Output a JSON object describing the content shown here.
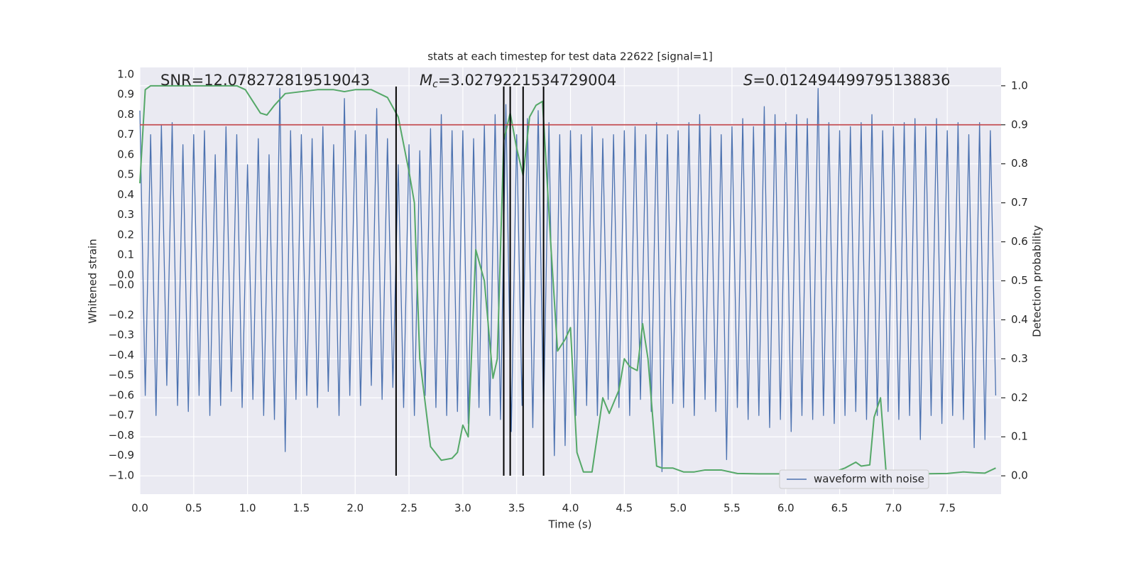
{
  "chart_data": {
    "type": "line",
    "title": "stats at each timestep for test data 22622 [signal=1]",
    "xlabel": "Time (s)",
    "ylabel": "Whitened strain",
    "y2label": "Detection probability",
    "xlim": [
      0,
      8
    ],
    "ylim": [
      -1.092,
      1.035
    ],
    "y2lim": [
      -0.047,
      1.047
    ],
    "xticks": [
      {
        "value": 0,
        "label": "0.0"
      },
      {
        "value": 0.5,
        "label": "0.5"
      },
      {
        "value": 1,
        "label": "1.0"
      },
      {
        "value": 1.5,
        "label": "1.5"
      },
      {
        "value": 2,
        "label": "2.0"
      },
      {
        "value": 2.5,
        "label": "2.5"
      },
      {
        "value": 3,
        "label": "3.0"
      },
      {
        "value": 3.5,
        "label": "3.5"
      },
      {
        "value": 4,
        "label": "4.0"
      },
      {
        "value": 4.5,
        "label": "4.5"
      },
      {
        "value": 5,
        "label": "5.0"
      },
      {
        "value": 5.5,
        "label": "5.5"
      },
      {
        "value": 6,
        "label": "6.0"
      },
      {
        "value": 6.5,
        "label": "6.5"
      },
      {
        "value": 7,
        "label": "7.0"
      },
      {
        "value": 7.5,
        "label": "7.5"
      }
    ],
    "yticks": [
      {
        "value": 1,
        "label": "1.0"
      },
      {
        "value": 0.9,
        "label": "0.9"
      },
      {
        "value": 0.8,
        "label": "0.8"
      },
      {
        "value": 0.7,
        "label": "0.7"
      },
      {
        "value": 0.6,
        "label": "0.6"
      },
      {
        "value": 0.5,
        "label": "0.5"
      },
      {
        "value": 0.4,
        "label": "0.4"
      },
      {
        "value": 0.3,
        "label": "0.3"
      },
      {
        "value": 0.2,
        "label": "0.2"
      },
      {
        "value": 0.1,
        "label": "0.1"
      },
      {
        "value": 0,
        "label": "0.0"
      },
      {
        "value": -0.05,
        "label": "−0.0"
      },
      {
        "value": -0.2,
        "label": "−0.2"
      },
      {
        "value": -0.3,
        "label": "−0.3"
      },
      {
        "value": -0.4,
        "label": "−0.4"
      },
      {
        "value": -0.5,
        "label": "−0.5"
      },
      {
        "value": -0.6,
        "label": "−0.6"
      },
      {
        "value": -0.7,
        "label": "−0.7"
      },
      {
        "value": -0.8,
        "label": "−0.8"
      },
      {
        "value": -0.9,
        "label": "−0.9"
      },
      {
        "value": -1,
        "label": "−1.0"
      }
    ],
    "y2ticks": [
      {
        "value": 0,
        "label": "0.0"
      },
      {
        "value": 0.1,
        "label": "0.1"
      },
      {
        "value": 0.2,
        "label": "0.2"
      },
      {
        "value": 0.3,
        "label": "0.3"
      },
      {
        "value": 0.4,
        "label": "0.4"
      },
      {
        "value": 0.5,
        "label": "0.5"
      },
      {
        "value": 0.6,
        "label": "0.6"
      },
      {
        "value": 0.7,
        "label": "0.7"
      },
      {
        "value": 0.8,
        "label": "0.8"
      },
      {
        "value": 0.9,
        "label": "0.9"
      },
      {
        "value": 1,
        "label": "1.0"
      }
    ],
    "grid": true,
    "legend": "lower right",
    "series": [
      {
        "name": "waveform with noise",
        "color": "#4c72b0",
        "x": [
          0,
          0.05,
          0.1,
          0.15,
          0.2,
          0.25,
          0.3,
          0.35,
          0.4,
          0.45,
          0.5,
          0.55,
          0.6,
          0.65,
          0.7,
          0.75,
          0.8,
          0.85,
          0.9,
          0.95,
          1,
          1.05,
          1.1,
          1.15,
          1.2,
          1.25,
          1.3,
          1.35,
          1.4,
          1.45,
          1.5,
          1.55,
          1.6,
          1.65,
          1.7,
          1.75,
          1.8,
          1.85,
          1.9,
          1.95,
          2,
          2.05,
          2.1,
          2.15,
          2.2,
          2.25,
          2.3,
          2.35,
          2.4,
          2.45,
          2.5,
          2.55,
          2.6,
          2.65,
          2.7,
          2.75,
          2.8,
          2.85,
          2.9,
          2.95,
          3,
          3.05,
          3.1,
          3.15,
          3.2,
          3.25,
          3.3,
          3.35,
          3.4,
          3.45,
          3.5,
          3.55,
          3.6,
          3.65,
          3.7,
          3.75,
          3.8,
          3.85,
          3.9,
          3.95,
          4,
          4.05,
          4.1,
          4.15,
          4.2,
          4.25,
          4.3,
          4.35,
          4.4,
          4.45,
          4.5,
          4.55,
          4.6,
          4.65,
          4.7,
          4.75,
          4.8,
          4.85,
          4.9,
          4.95,
          5,
          5.05,
          5.1,
          5.15,
          5.2,
          5.25,
          5.3,
          5.35,
          5.4,
          5.45,
          5.5,
          5.55,
          5.6,
          5.65,
          5.7,
          5.75,
          5.8,
          5.85,
          5.9,
          5.95,
          6,
          6.05,
          6.1,
          6.15,
          6.2,
          6.25,
          6.3,
          6.35,
          6.4,
          6.45,
          6.5,
          6.55,
          6.6,
          6.65,
          6.7,
          6.75,
          6.8,
          6.85,
          6.9,
          6.95,
          7,
          7.05,
          7.1,
          7.15,
          7.2,
          7.25,
          7.3,
          7.35,
          7.4,
          7.45,
          7.5,
          7.55,
          7.6,
          7.65,
          7.7,
          7.75,
          7.8,
          7.85,
          7.9,
          7.95
        ],
        "values": [
          0.82,
          -0.6,
          0.7,
          -0.7,
          0.75,
          -0.55,
          0.76,
          -0.65,
          0.65,
          -0.68,
          0.7,
          -0.6,
          0.72,
          -0.7,
          0.6,
          -0.65,
          0.74,
          -0.58,
          0.7,
          -0.66,
          0.55,
          -0.62,
          0.68,
          -0.7,
          0.6,
          -0.72,
          0.93,
          -0.88,
          0.72,
          -0.62,
          0.7,
          -0.6,
          0.68,
          -0.66,
          0.74,
          -0.58,
          0.65,
          -0.7,
          0.88,
          -0.6,
          0.72,
          -0.65,
          0.7,
          -0.55,
          0.83,
          -0.62,
          0.68,
          -0.56,
          0.55,
          -0.66,
          0.65,
          -0.7,
          0.62,
          -0.6,
          0.73,
          -0.66,
          0.8,
          -0.7,
          0.72,
          -0.68,
          0.72,
          -0.74,
          0.68,
          -0.66,
          0.75,
          -0.7,
          0.8,
          -0.72,
          0.85,
          -0.78,
          0.7,
          -0.65,
          0.78,
          -0.76,
          0.82,
          -0.7,
          0.76,
          -0.9,
          0.7,
          -0.85,
          0.72,
          -0.7,
          0.7,
          -0.65,
          0.74,
          -0.7,
          0.68,
          -0.62,
          0.7,
          -0.66,
          0.72,
          -0.7,
          0.74,
          -0.62,
          0.7,
          -0.68,
          0.76,
          -0.98,
          0.7,
          -0.64,
          0.72,
          -0.66,
          0.76,
          -0.7,
          0.8,
          -0.62,
          0.74,
          -0.68,
          0.7,
          -0.92,
          0.74,
          -0.66,
          0.78,
          -0.72,
          0.74,
          -0.7,
          0.84,
          -0.76,
          0.8,
          -0.72,
          0.76,
          -0.78,
          0.8,
          -0.7,
          0.78,
          -0.72,
          0.93,
          -0.7,
          0.76,
          -0.74,
          0.72,
          -0.7,
          0.74,
          -0.68,
          0.76,
          -0.72,
          0.8,
          -0.7,
          0.72,
          -0.68,
          0.74,
          -0.72,
          0.76,
          -0.7,
          0.78,
          -0.82,
          0.74,
          -0.7,
          0.78,
          -0.74,
          0.72,
          -0.7,
          0.76,
          -0.72,
          0.7,
          -0.86,
          0.76,
          -0.82,
          0.72,
          -0.6
        ]
      },
      {
        "color": "#55a868",
        "axis": "y2",
        "x": [
          0,
          0.05,
          0.1,
          0.2,
          0.5,
          0.9,
          0.98,
          1.05,
          1.12,
          1.18,
          1.25,
          1.35,
          1.5,
          1.65,
          1.8,
          1.9,
          2,
          2.15,
          2.3,
          2.4,
          2.5,
          2.55,
          2.6,
          2.7,
          2.8,
          2.9,
          2.95,
          3,
          3.05,
          3.12,
          3.2,
          3.28,
          3.32,
          3.38,
          3.44,
          3.5,
          3.56,
          3.62,
          3.68,
          3.74,
          3.82,
          3.88,
          3.95,
          4,
          4.06,
          4.12,
          4.2,
          4.3,
          4.36,
          4.45,
          4.5,
          4.55,
          4.62,
          4.67,
          4.72,
          4.8,
          4.85,
          4.95,
          5.05,
          5.15,
          5.25,
          5.4,
          5.55,
          5.75,
          6,
          6.2,
          6.45,
          6.55,
          6.65,
          6.7,
          6.78,
          6.82,
          6.88,
          6.93,
          7,
          7.15,
          7.25,
          7.5,
          7.65,
          7.75,
          7.85,
          7.95
        ],
        "values": [
          0.75,
          0.99,
          1,
          1,
          1,
          1,
          0.99,
          0.96,
          0.93,
          0.925,
          0.95,
          0.98,
          0.985,
          0.99,
          0.99,
          0.985,
          0.99,
          0.99,
          0.97,
          0.92,
          0.78,
          0.7,
          0.3,
          0.075,
          0.04,
          0.045,
          0.06,
          0.13,
          0.1,
          0.58,
          0.5,
          0.25,
          0.3,
          0.86,
          0.93,
          0.84,
          0.77,
          0.92,
          0.95,
          0.96,
          0.58,
          0.32,
          0.35,
          0.38,
          0.06,
          0.01,
          0.01,
          0.2,
          0.16,
          0.22,
          0.3,
          0.28,
          0.27,
          0.39,
          0.3,
          0.025,
          0.02,
          0.02,
          0.01,
          0.01,
          0.015,
          0.015,
          0.006,
          0.005,
          0.005,
          0.007,
          0.01,
          0.02,
          0.035,
          0.025,
          0.028,
          0.15,
          0.2,
          0.015,
          0.005,
          0.008,
          0.005,
          0.006,
          0.01,
          0.008,
          0.007,
          0.02
        ]
      }
    ],
    "hlines": [
      {
        "axis": "y2",
        "y": 0.9,
        "color": "#c44e52"
      }
    ],
    "vlines": {
      "x": [
        2.38,
        3.38,
        3.44,
        3.56,
        3.75
      ],
      "ymin": -1.0,
      "ymax": 0.94,
      "color": "#000000"
    },
    "annotations": [
      {
        "text": "SNR=12.078272819519043"
      },
      {
        "symbol": "M",
        "subscript": "c",
        "text": "=3.0279221534729004"
      },
      {
        "symbol": "S",
        "text": "=0.012494499795138836"
      }
    ]
  }
}
